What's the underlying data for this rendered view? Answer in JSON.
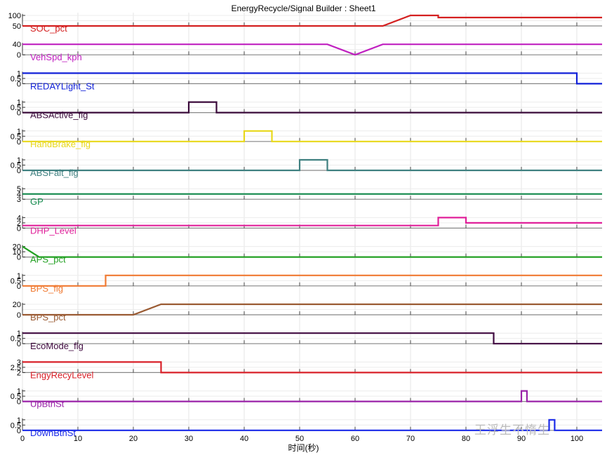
{
  "window": {
    "title": "EnergyRecycle/Signal Builder : Sheet1"
  },
  "watermark": "王浮生不惰生",
  "chart_data": {
    "type": "line",
    "title": "EnergyRecycle/Signal Builder : Sheet1",
    "xlabel": "时间(秒)",
    "xlim": [
      0,
      100
    ],
    "xticks": [
      0,
      10,
      20,
      30,
      40,
      50,
      60,
      70,
      80,
      90,
      100
    ],
    "grid": true,
    "series": [
      {
        "name": "SOC_pct",
        "color": "#d42020",
        "ylim": [
          50,
          100
        ],
        "yticks": [
          "50",
          "100"
        ],
        "x": [
          0,
          65,
          70,
          75,
          75,
          105
        ],
        "y": [
          50,
          50,
          100,
          100,
          90,
          90
        ]
      },
      {
        "name": "VehSpd_kph",
        "color": "#c020c0",
        "ylim": [
          0,
          40
        ],
        "yticks": [
          "0",
          "40"
        ],
        "x": [
          0,
          55,
          60,
          65,
          105
        ],
        "y": [
          40,
          40,
          0,
          40,
          40
        ]
      },
      {
        "name": "REDAYLight_St",
        "color": "#1020d8",
        "ylim": [
          0,
          1
        ],
        "yticks": [
          "0",
          "0.5",
          "1"
        ],
        "x": [
          0,
          100,
          100,
          105
        ],
        "y": [
          1,
          1,
          0,
          0
        ]
      },
      {
        "name": "ABSActive_flg",
        "color": "#3a0a3a",
        "ylim": [
          0,
          1
        ],
        "yticks": [
          "0",
          "0.5",
          "1"
        ],
        "x": [
          0,
          30,
          30,
          35,
          35,
          105
        ],
        "y": [
          0,
          0,
          1,
          1,
          0,
          0
        ]
      },
      {
        "name": "HandBrake_flg",
        "color": "#e8d81a",
        "ylim": [
          0,
          1
        ],
        "yticks": [
          "0",
          "0.5",
          "1"
        ],
        "x": [
          0,
          40,
          40,
          45,
          45,
          105
        ],
        "y": [
          0,
          0,
          1,
          1,
          0,
          0
        ]
      },
      {
        "name": "ABSFalt_flg",
        "color": "#3f8080",
        "ylim": [
          0,
          1
        ],
        "yticks": [
          "0",
          "0.5",
          "1"
        ],
        "x": [
          0,
          50,
          50,
          55,
          55,
          105
        ],
        "y": [
          0,
          0,
          1,
          1,
          0,
          0
        ]
      },
      {
        "name": "GP",
        "color": "#10884a",
        "ylim": [
          3,
          5
        ],
        "yticks": [
          "3",
          "4",
          "5"
        ],
        "x": [
          0,
          105
        ],
        "y": [
          4,
          4
        ]
      },
      {
        "name": "DHP_Level",
        "color": "#e0209a",
        "ylim": [
          0,
          4
        ],
        "yticks": [
          "0",
          "2",
          "4"
        ],
        "x": [
          0,
          75,
          75,
          80,
          80,
          105
        ],
        "y": [
          1,
          1,
          4,
          4,
          2,
          2
        ]
      },
      {
        "name": "APS_pct",
        "color": "#22a022",
        "ylim": [
          0,
          20
        ],
        "yticks": [
          "0",
          "10",
          "20"
        ],
        "x": [
          0,
          3,
          105
        ],
        "y": [
          20,
          0,
          0
        ]
      },
      {
        "name": "BPS_flg",
        "color": "#f07a32",
        "ylim": [
          0,
          1
        ],
        "yticks": [
          "0",
          "0.5",
          "1"
        ],
        "x": [
          0,
          15,
          15,
          105
        ],
        "y": [
          0,
          0,
          1,
          1
        ]
      },
      {
        "name": "BPS_pct",
        "color": "#9a5a32",
        "ylim": [
          0,
          20
        ],
        "yticks": [
          "0",
          "20"
        ],
        "x": [
          0,
          20,
          25,
          105
        ],
        "y": [
          0,
          0,
          20,
          20
        ]
      },
      {
        "name": "EcoMode_flg",
        "color": "#400a40",
        "ylim": [
          0,
          1
        ],
        "yticks": [
          "0",
          "0.5",
          "1"
        ],
        "x": [
          0,
          85,
          85,
          105
        ],
        "y": [
          1,
          1,
          0,
          0
        ]
      },
      {
        "name": "EngyRecyLevel",
        "color": "#d82028",
        "ylim": [
          2,
          3
        ],
        "yticks": [
          "2",
          "2.5",
          "3"
        ],
        "x": [
          0,
          25,
          25,
          105
        ],
        "y": [
          3,
          3,
          2,
          2
        ]
      },
      {
        "name": "UpBtnSt",
        "color": "#9a22a8",
        "ylim": [
          0,
          1
        ],
        "yticks": [
          "0",
          "0.5",
          "1"
        ],
        "x": [
          0,
          90,
          90,
          91,
          91,
          105
        ],
        "y": [
          0,
          0,
          1,
          1,
          0,
          0
        ]
      },
      {
        "name": "DownBtnSt",
        "color": "#1a2ae8",
        "ylim": [
          0,
          1
        ],
        "yticks": [
          "0",
          "0.5",
          "1"
        ],
        "x": [
          0,
          95,
          95,
          96,
          96,
          105
        ],
        "y": [
          0,
          0,
          1,
          1,
          0,
          0
        ]
      }
    ]
  }
}
